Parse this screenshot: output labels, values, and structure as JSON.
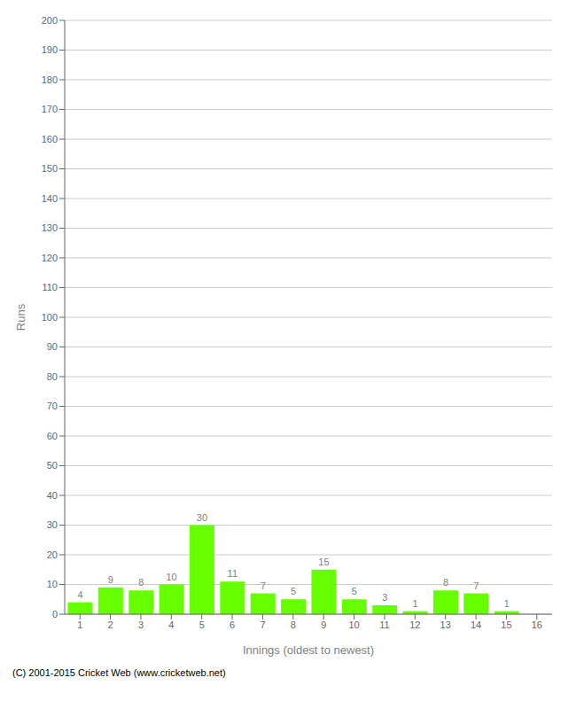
{
  "chart_data": {
    "type": "bar",
    "categories": [
      "1",
      "2",
      "3",
      "4",
      "5",
      "6",
      "7",
      "8",
      "9",
      "10",
      "11",
      "12",
      "13",
      "14",
      "15",
      "16"
    ],
    "values": [
      4,
      9,
      8,
      10,
      30,
      11,
      7,
      5,
      15,
      5,
      3,
      1,
      8,
      7,
      1,
      0
    ],
    "color": "#66ff00",
    "xlabel": "Innings (oldest to newest)",
    "ylabel": "Runs",
    "ylim": [
      0,
      200
    ],
    "yticks": [
      0,
      10,
      20,
      30,
      40,
      50,
      60,
      70,
      80,
      90,
      100,
      110,
      120,
      130,
      140,
      150,
      160,
      170,
      180,
      190,
      200
    ],
    "grid": true,
    "data_labels": true,
    "annotations": [
      "(C) 2001-2015 Cricket Web (www.cricketweb.net)"
    ]
  }
}
